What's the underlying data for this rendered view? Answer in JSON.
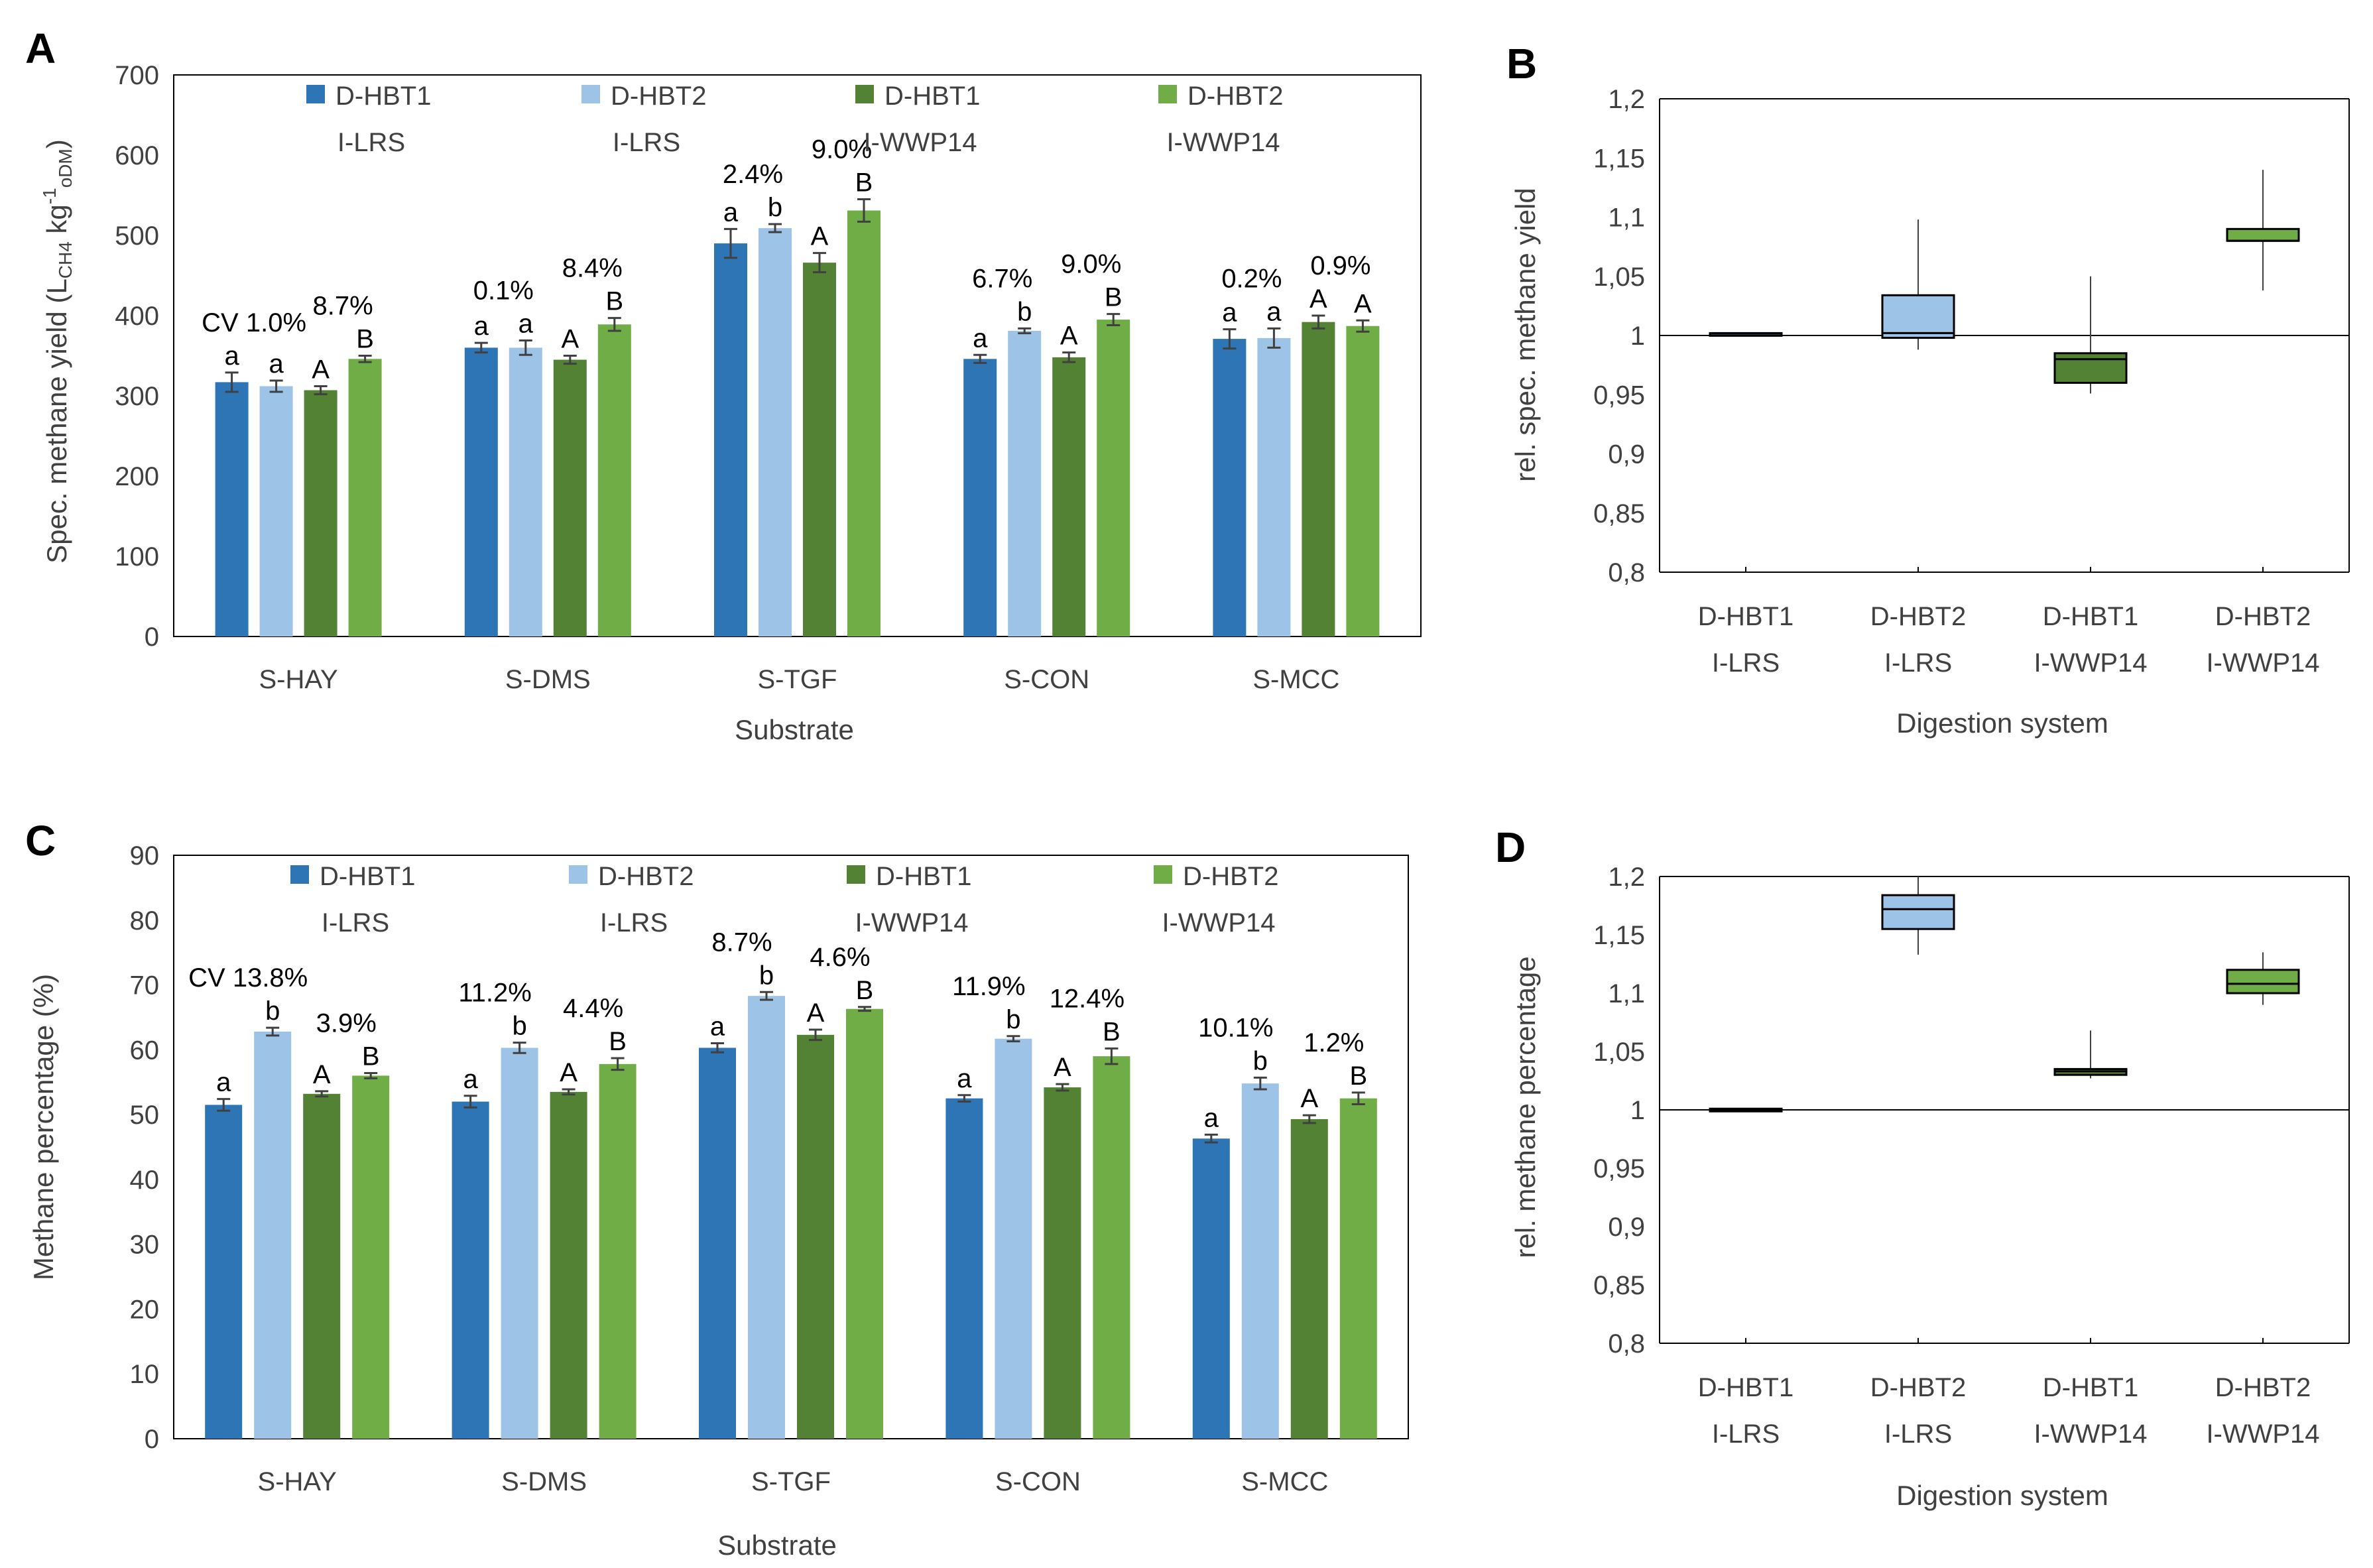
{
  "panels": [
    {
      "letter": "A"
    },
    {
      "letter": "B"
    },
    {
      "letter": "C"
    },
    {
      "letter": "D"
    }
  ],
  "series_colors": [
    "#2E75B6",
    "#9DC3E6",
    "#548235",
    "#70AD47"
  ],
  "legend": [
    {
      "line1": "D-HBT1",
      "line2": "I-LRS"
    },
    {
      "line1": "D-HBT2",
      "line2": "I-LRS"
    },
    {
      "line1": "D-HBT1",
      "line2": "I-WWP14"
    },
    {
      "line1": "D-HBT2",
      "line2": "I-WWP14"
    }
  ],
  "chart_data": [
    {
      "id": "A",
      "type": "bar",
      "title": "",
      "xlabel": "Substrate",
      "ylabel_main": "Spec. methane yield (L",
      "ylabel_sub1": "CH4",
      "ylabel_mid": " kg",
      "ylabel_sup": "-1",
      "ylabel_sub2": "oDM",
      "ylabel_end": ")",
      "ylim": [
        0,
        700
      ],
      "yticks": [
        "0",
        "100",
        "200",
        "300",
        "400",
        "500",
        "600",
        "700"
      ],
      "categories": [
        "S-HAY",
        "S-DMS",
        "S-TGF",
        "S-CON",
        "S-MCC"
      ],
      "series": [
        {
          "name": "D-HBT1 I-LRS",
          "values": [
            317,
            360,
            490,
            346,
            371
          ],
          "errors": [
            12,
            6,
            18,
            5,
            12
          ],
          "letters": [
            "a",
            "a",
            "a",
            "a",
            "a"
          ]
        },
        {
          "name": "D-HBT2 I-LRS",
          "values": [
            312,
            360,
            509,
            381,
            372
          ],
          "errors": [
            7,
            9,
            5,
            3,
            12
          ],
          "letters": [
            "a",
            "a",
            "b",
            "b",
            "a"
          ]
        },
        {
          "name": "D-HBT1 I-WWP14",
          "values": [
            307,
            345,
            466,
            348,
            392
          ],
          "errors": [
            5,
            5,
            12,
            6,
            8
          ],
          "letters": [
            "A",
            "A",
            "A",
            "A",
            "A"
          ]
        },
        {
          "name": "D-HBT2 I-WWP14",
          "values": [
            346,
            389,
            531,
            395,
            387
          ],
          "errors": [
            4,
            8,
            14,
            7,
            7
          ],
          "letters": [
            "B",
            "B",
            "B",
            "B",
            "A"
          ]
        }
      ],
      "cv_labels": [
        {
          "category": "S-HAY",
          "group": "LRS",
          "text": "CV 1.0%"
        },
        {
          "category": "S-HAY",
          "group": "WWP14",
          "text": "8.7%"
        },
        {
          "category": "S-DMS",
          "group": "LRS",
          "text": "0.1%"
        },
        {
          "category": "S-DMS",
          "group": "WWP14",
          "text": "8.4%"
        },
        {
          "category": "S-TGF",
          "group": "LRS",
          "text": "2.4%"
        },
        {
          "category": "S-TGF",
          "group": "WWP14",
          "text": "9.0%"
        },
        {
          "category": "S-CON",
          "group": "LRS",
          "text": "6.7%"
        },
        {
          "category": "S-CON",
          "group": "WWP14",
          "text": "9.0%"
        },
        {
          "category": "S-MCC",
          "group": "LRS",
          "text": "0.2%"
        },
        {
          "category": "S-MCC",
          "group": "WWP14",
          "text": "0.9%"
        }
      ]
    },
    {
      "id": "B",
      "type": "boxplot",
      "title": "",
      "xlabel": "Digestion system",
      "ylabel": "rel. spec. methane yield",
      "ylim": [
        0.8,
        1.2
      ],
      "yticks": [
        "0,8",
        "0,85",
        "0,9",
        "0,95",
        "1",
        "1,05",
        "1,1",
        "1,15",
        "1,2"
      ],
      "reference_line": 1,
      "categories": [
        {
          "line1": "D-HBT1",
          "line2": "I-LRS"
        },
        {
          "line1": "D-HBT2",
          "line2": "I-LRS"
        },
        {
          "line1": "D-HBT1",
          "line2": "I-WWP14"
        },
        {
          "line1": "D-HBT2",
          "line2": "I-WWP14"
        }
      ],
      "boxes": [
        {
          "min": 1.0,
          "q1": 1.0,
          "median": 1.0,
          "q3": 1.002,
          "max": 1.002
        },
        {
          "min": 0.988,
          "q1": 0.998,
          "median": 1.002,
          "q3": 1.034,
          "max": 1.098
        },
        {
          "min": 0.951,
          "q1": 0.96,
          "median": 0.98,
          "q3": 0.985,
          "max": 1.05
        },
        {
          "min": 1.038,
          "q1": 1.08,
          "median": 1.08,
          "q3": 1.09,
          "max": 1.14
        }
      ]
    },
    {
      "id": "C",
      "type": "bar",
      "title": "",
      "xlabel": "Substrate",
      "ylabel": "Methane percentage (%)",
      "ylim": [
        0,
        90
      ],
      "yticks": [
        "0",
        "10",
        "20",
        "30",
        "40",
        "50",
        "60",
        "70",
        "80",
        "90"
      ],
      "categories": [
        "S-HAY",
        "S-DMS",
        "S-TGF",
        "S-CON",
        "S-MCC"
      ],
      "series": [
        {
          "name": "D-HBT1 I-LRS",
          "values": [
            51.5,
            52.0,
            60.3,
            52.5,
            46.3
          ],
          "errors": [
            0.9,
            0.9,
            0.7,
            0.5,
            0.6
          ],
          "letters": [
            "a",
            "a",
            "a",
            "a",
            "a"
          ]
        },
        {
          "name": "D-HBT2 I-LRS",
          "values": [
            62.8,
            60.3,
            68.3,
            61.7,
            54.8
          ],
          "errors": [
            0.6,
            0.8,
            0.6,
            0.4,
            0.9
          ],
          "letters": [
            "b",
            "b",
            "b",
            "b",
            "b"
          ]
        },
        {
          "name": "D-HBT1 I-WWP14",
          "values": [
            53.2,
            53.5,
            62.3,
            54.2,
            49.3
          ],
          "errors": [
            0.4,
            0.4,
            0.8,
            0.5,
            0.6
          ],
          "letters": [
            "A",
            "A",
            "A",
            "A",
            "A"
          ]
        },
        {
          "name": "D-HBT2 I-WWP14",
          "values": [
            56.0,
            57.8,
            66.3,
            59.0,
            52.5
          ],
          "errors": [
            0.4,
            0.9,
            0.3,
            1.2,
            0.9
          ],
          "letters": [
            "B",
            "B",
            "B",
            "B",
            "B"
          ]
        }
      ],
      "cv_labels": [
        {
          "category": "S-HAY",
          "group": "LRS",
          "text": "CV 13.8%"
        },
        {
          "category": "S-HAY",
          "group": "WWP14",
          "text": "3.9%"
        },
        {
          "category": "S-DMS",
          "group": "LRS",
          "text": "11.2%"
        },
        {
          "category": "S-DMS",
          "group": "WWP14",
          "text": "4.4%"
        },
        {
          "category": "S-TGF",
          "group": "LRS",
          "text": "8.7%"
        },
        {
          "category": "S-TGF",
          "group": "WWP14",
          "text": "4.6%"
        },
        {
          "category": "S-CON",
          "group": "LRS",
          "text": "11.9%"
        },
        {
          "category": "S-CON",
          "group": "WWP14",
          "text": "12.4%"
        },
        {
          "category": "S-MCC",
          "group": "LRS",
          "text": "10.1%"
        },
        {
          "category": "S-MCC",
          "group": "WWP14",
          "text": "1.2%"
        }
      ]
    },
    {
      "id": "D",
      "type": "boxplot",
      "title": "",
      "xlabel": "Digestion system",
      "ylabel": "rel. methane percentage",
      "ylim": [
        0.8,
        1.2
      ],
      "yticks": [
        "0,8",
        "0,85",
        "0,9",
        "0,95",
        "1",
        "1,05",
        "1,1",
        "1,15",
        "1,2"
      ],
      "reference_line": 1,
      "categories": [
        {
          "line1": "D-HBT1",
          "line2": "I-LRS"
        },
        {
          "line1": "D-HBT2",
          "line2": "I-LRS"
        },
        {
          "line1": "D-HBT1",
          "line2": "I-WWP14"
        },
        {
          "line1": "D-HBT2",
          "line2": "I-WWP14"
        }
      ],
      "boxes": [
        {
          "min": 1.0,
          "q1": 1.0,
          "median": 1.0,
          "q3": 1.001,
          "max": 1.001
        },
        {
          "min": 1.133,
          "q1": 1.155,
          "median": 1.172,
          "q3": 1.184,
          "max": 1.2
        },
        {
          "min": 1.027,
          "q1": 1.03,
          "median": 1.033,
          "q3": 1.035,
          "max": 1.068
        },
        {
          "min": 1.09,
          "q1": 1.1,
          "median": 1.108,
          "q3": 1.12,
          "max": 1.135
        }
      ]
    }
  ]
}
